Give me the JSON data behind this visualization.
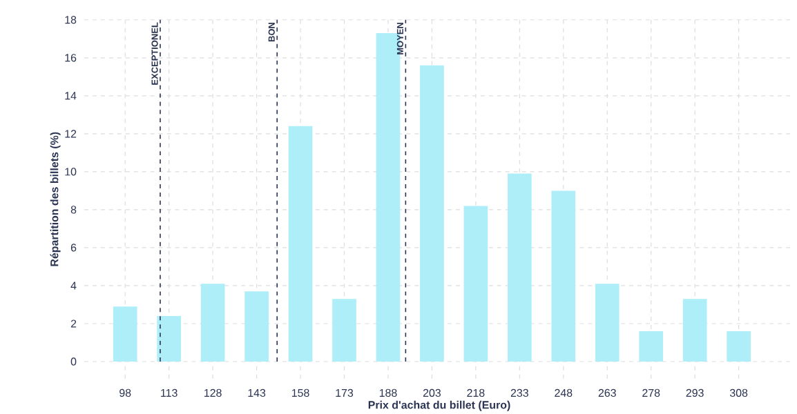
{
  "chart_data": {
    "type": "bar",
    "xlabel": "Prix d'achat du billet (Euro)",
    "ylabel": "Répartition des billets (%)",
    "x": [
      98,
      113,
      128,
      143,
      158,
      173,
      188,
      203,
      218,
      233,
      248,
      263,
      278,
      293,
      308
    ],
    "values": [
      2.9,
      2.4,
      4.1,
      3.7,
      12.4,
      3.3,
      17.3,
      15.6,
      8.2,
      9.9,
      9.0,
      4.1,
      1.6,
      3.3,
      1.6
    ],
    "color": "#aeeef8",
    "xlim": [
      84,
      327
    ],
    "xticks": [
      98,
      113,
      128,
      143,
      158,
      173,
      188,
      203,
      218,
      233,
      248,
      263,
      278,
      293,
      308
    ],
    "ylim": [
      -0.9,
      18
    ],
    "yticks": [
      0,
      2,
      4,
      6,
      8,
      10,
      12,
      14,
      16,
      18
    ],
    "ref_lines": [
      {
        "axis": "x",
        "value": 110,
        "label": "EXCEPTIONEL",
        "color": "#2a3350",
        "line_style": "dashed"
      },
      {
        "axis": "x",
        "value": 150,
        "label": "BON",
        "color": "#2a3350",
        "line_style": "dashed"
      },
      {
        "axis": "x",
        "value": 194,
        "label": "MOYEN",
        "color": "#2a3350",
        "line_style": "dashed"
      }
    ],
    "grid": true
  }
}
